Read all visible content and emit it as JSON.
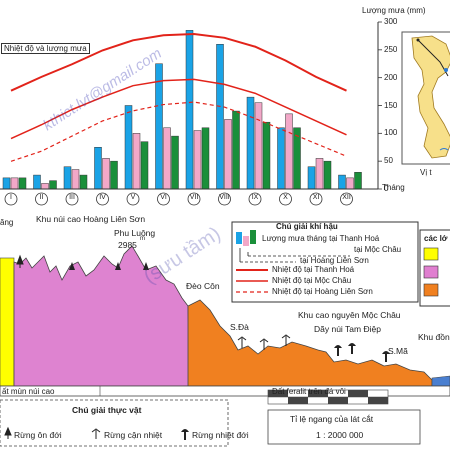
{
  "chart_data": {
    "type": "bar",
    "categories": [
      "I",
      "II",
      "III",
      "IV",
      "V",
      "VI",
      "VII",
      "VIII",
      "IX",
      "X",
      "XI",
      "XII"
    ],
    "series": [
      {
        "name": "Lượng mưa tháng tại Thanh Hoá",
        "values": [
          20,
          25,
          40,
          75,
          150,
          225,
          285,
          260,
          165,
          110,
          40,
          25
        ]
      },
      {
        "name": "tại Mộc Châu",
        "values": [
          20,
          10,
          35,
          55,
          100,
          110,
          105,
          125,
          155,
          135,
          55,
          20
        ]
      },
      {
        "name": "tại Hoàng Liên Sơn",
        "values": [
          20,
          15,
          25,
          50,
          85,
          95,
          110,
          140,
          120,
          110,
          50,
          30
        ]
      },
      {
        "name": "Nhiệt độ tại Thanh Hoá",
        "values": [
          7.8,
          8.9,
          9.9,
          11.0,
          11.8,
          12.2,
          12.3,
          12.0,
          11.3,
          10.2,
          8.9,
          7.8
        ]
      },
      {
        "name": "Nhiệt độ tại Mộc Châu",
        "values": [
          4.0,
          5.1,
          6.3,
          7.3,
          8.2,
          8.6,
          8.7,
          8.3,
          7.6,
          6.5,
          5.4,
          4.3
        ]
      },
      {
        "name": "Nhiệt độ tại Hoàng Liên Sơn",
        "values": [
          2.2,
          3.0,
          4.2,
          5.4,
          6.2,
          6.7,
          6.9,
          6.5,
          5.6,
          4.6,
          3.6,
          2.6
        ]
      }
    ],
    "xlabel": "Tháng",
    "ylabel": "Lượng mưa (mm)",
    "y_ticks": [
      "300",
      "250",
      "200",
      "150",
      "100",
      "50",
      "0"
    ],
    "ylim": [
      0,
      300
    ],
    "grid": false,
    "legend": "bottom"
  },
  "header": {
    "chart_label": "Nhiệt độ và lượng mưa",
    "rain_axis_label": "Lượng mưa (mm)",
    "month_axis_label": "Tháng",
    "map_caption": "Vị t"
  },
  "profile": {
    "label_lang": "ăng",
    "label_hls": "Khu núi cao Hoàng Liên Sơn",
    "label_phu_luong": "Phu Luông",
    "label_phu_luong_height": "2985",
    "label_height_unit": "m",
    "label_deo_con": "Đèo Côn",
    "label_moc_chau": "Khu cao nguyên Mộc Châu",
    "label_da": "S.Đà",
    "label_tam_diep": "Dãy núi Tam Điệp",
    "label_ma": "S.Mã",
    "label_khu_dong": "Khu đồn",
    "soil_1": "ất mùn núi cao",
    "soil_2": "Đất feralit trên đá vôi"
  },
  "climate_legend": {
    "title": "Chú giải khí hậu",
    "rain_thanh_hoa": "Lượng mưa tháng tại Thanh Hoá",
    "rain_moc_chau": "tại Mộc Châu",
    "rain_hls": "tại Hoàng Liên Sơn",
    "temp_thanh_hoa": "Nhiệt độ tại Thanh Hoá",
    "temp_moc_chau": "Nhiệt độ tại Mộc Châu",
    "temp_hls": "Nhiệt độ tại Hoàng Liên Sơn",
    "colors": {
      "thanh_hoa": "#1aa3e6",
      "moc_chau": "#f2a8c8",
      "hls": "#1a8f3a",
      "temp": "#e2231a"
    }
  },
  "layer_legend": {
    "title": "các lớ",
    "colors": [
      "#ffff00",
      "#e07fd0",
      "#f08020"
    ]
  },
  "veg_legend": {
    "title": "Chú giải thực vật",
    "item_1": "Rừng ôn đới",
    "item_2": "Rừng cận nhiệt",
    "item_3": "Rừng nhiệt đới"
  },
  "scale": {
    "title": "Tỉ lệ ngang của lát cắt",
    "value": "1 : 2000 000"
  },
  "watermark": {
    "email": "kthict.lvt@gmail.com",
    "text2": "(sưu tầm)"
  }
}
